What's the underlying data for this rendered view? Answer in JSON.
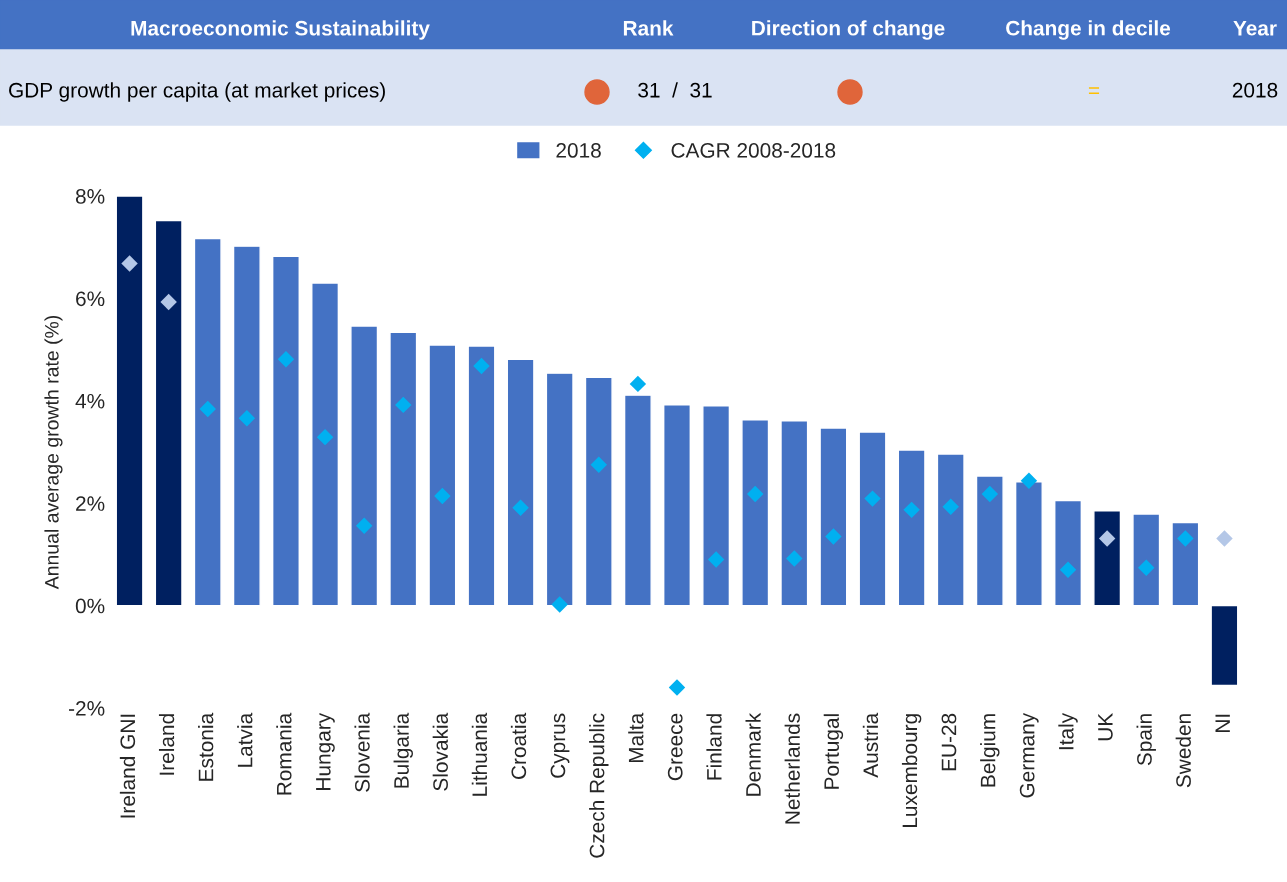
{
  "chart_data": {
    "type": "bar",
    "annotations": [
      "Macroeconomic Sustainability",
      "Rank",
      "Direction of change",
      "Change in decile",
      "Year",
      "GDP growth per capita (at market prices)",
      "31  /  31",
      "=",
      "2018"
    ],
    "ylabel": "Annual average growth rate (%)",
    "categories": [
      "Ireland GNI",
      "Ireland",
      "Estonia",
      "Latvia",
      "Romania",
      "Hungary",
      "Slovenia",
      "Bulgaria",
      "Slovakia",
      "Lithuania",
      "Croatia",
      "Cyprus",
      "Czech Republic",
      "Malta",
      "Greece",
      "Finland",
      "Denmark",
      "Netherlands",
      "Portugal",
      "Austria",
      "Luxembourg",
      "EU-28",
      "Belgium",
      "Germany",
      "Italy",
      "UK",
      "Spain",
      "Sweden",
      "NI"
    ],
    "series": [
      {
        "name": "2018",
        "color": "#4472c4",
        "colors": [
          "#002060",
          "#002060",
          "#4472c4",
          "#4472c4",
          "#4472c4",
          "#4472c4",
          "#4472c4",
          "#4472c4",
          "#4472c4",
          "#4472c4",
          "#4472c4",
          "#4472c4",
          "#4472c4",
          "#4472c4",
          "#4472c4",
          "#4472c4",
          "#4472c4",
          "#4472c4",
          "#4472c4",
          "#4472c4",
          "#4472c4",
          "#4472c4",
          "#4472c4",
          "#4472c4",
          "#4472c4",
          "#002060",
          "#4472c4",
          "#4472c4",
          "#002060"
        ],
        "values": [
          8.0,
          7.52,
          7.17,
          7.02,
          6.82,
          6.3,
          5.46,
          5.34,
          5.09,
          5.07,
          4.81,
          4.54,
          4.46,
          4.11,
          3.92,
          3.9,
          3.63,
          3.61,
          3.47,
          3.39,
          3.04,
          2.96,
          2.53,
          2.42,
          2.05,
          1.85,
          1.79,
          1.62,
          -1.56
        ]
      },
      {
        "name": "CAGR 2008-2018",
        "type": "scatter",
        "marker": "diamond",
        "color": "#00b0f0",
        "colors": [
          "#b4c7e7",
          "#b4c7e7",
          "#00b0f0",
          "#00b0f0",
          "#00b0f0",
          "#00b0f0",
          "#00b0f0",
          "#00b0f0",
          "#00b0f0",
          "#00b0f0",
          "#00b0f0",
          "#00b0f0",
          "#00b0f0",
          "#00b0f0",
          "#00b0f0",
          "#00b0f0",
          "#00b0f0",
          "#00b0f0",
          "#00b0f0",
          "#00b0f0",
          "#00b0f0",
          "#00b0f0",
          "#00b0f0",
          "#00b0f0",
          "#00b0f0",
          "#b4c7e7",
          "#00b0f0",
          "#00b0f0",
          "#b4c7e7"
        ],
        "values": [
          6.68,
          5.93,
          3.84,
          3.66,
          4.81,
          3.29,
          1.56,
          3.92,
          2.14,
          4.68,
          1.91,
          0.02,
          2.75,
          4.33,
          -1.6,
          0.9,
          2.18,
          0.92,
          1.35,
          2.09,
          1.87,
          1.93,
          2.18,
          2.44,
          0.7,
          1.31,
          0.74,
          1.31,
          1.31
        ]
      }
    ],
    "ylim": [
      -2,
      8
    ],
    "yticks": [
      {
        "value": -2,
        "label": "-2%"
      },
      {
        "value": 0,
        "label": "0%"
      },
      {
        "value": 2,
        "label": "2%"
      },
      {
        "value": 4,
        "label": "4%"
      },
      {
        "value": 6,
        "label": "6%"
      },
      {
        "value": 8,
        "label": "8%"
      }
    ],
    "grid": false,
    "legend": "top"
  }
}
